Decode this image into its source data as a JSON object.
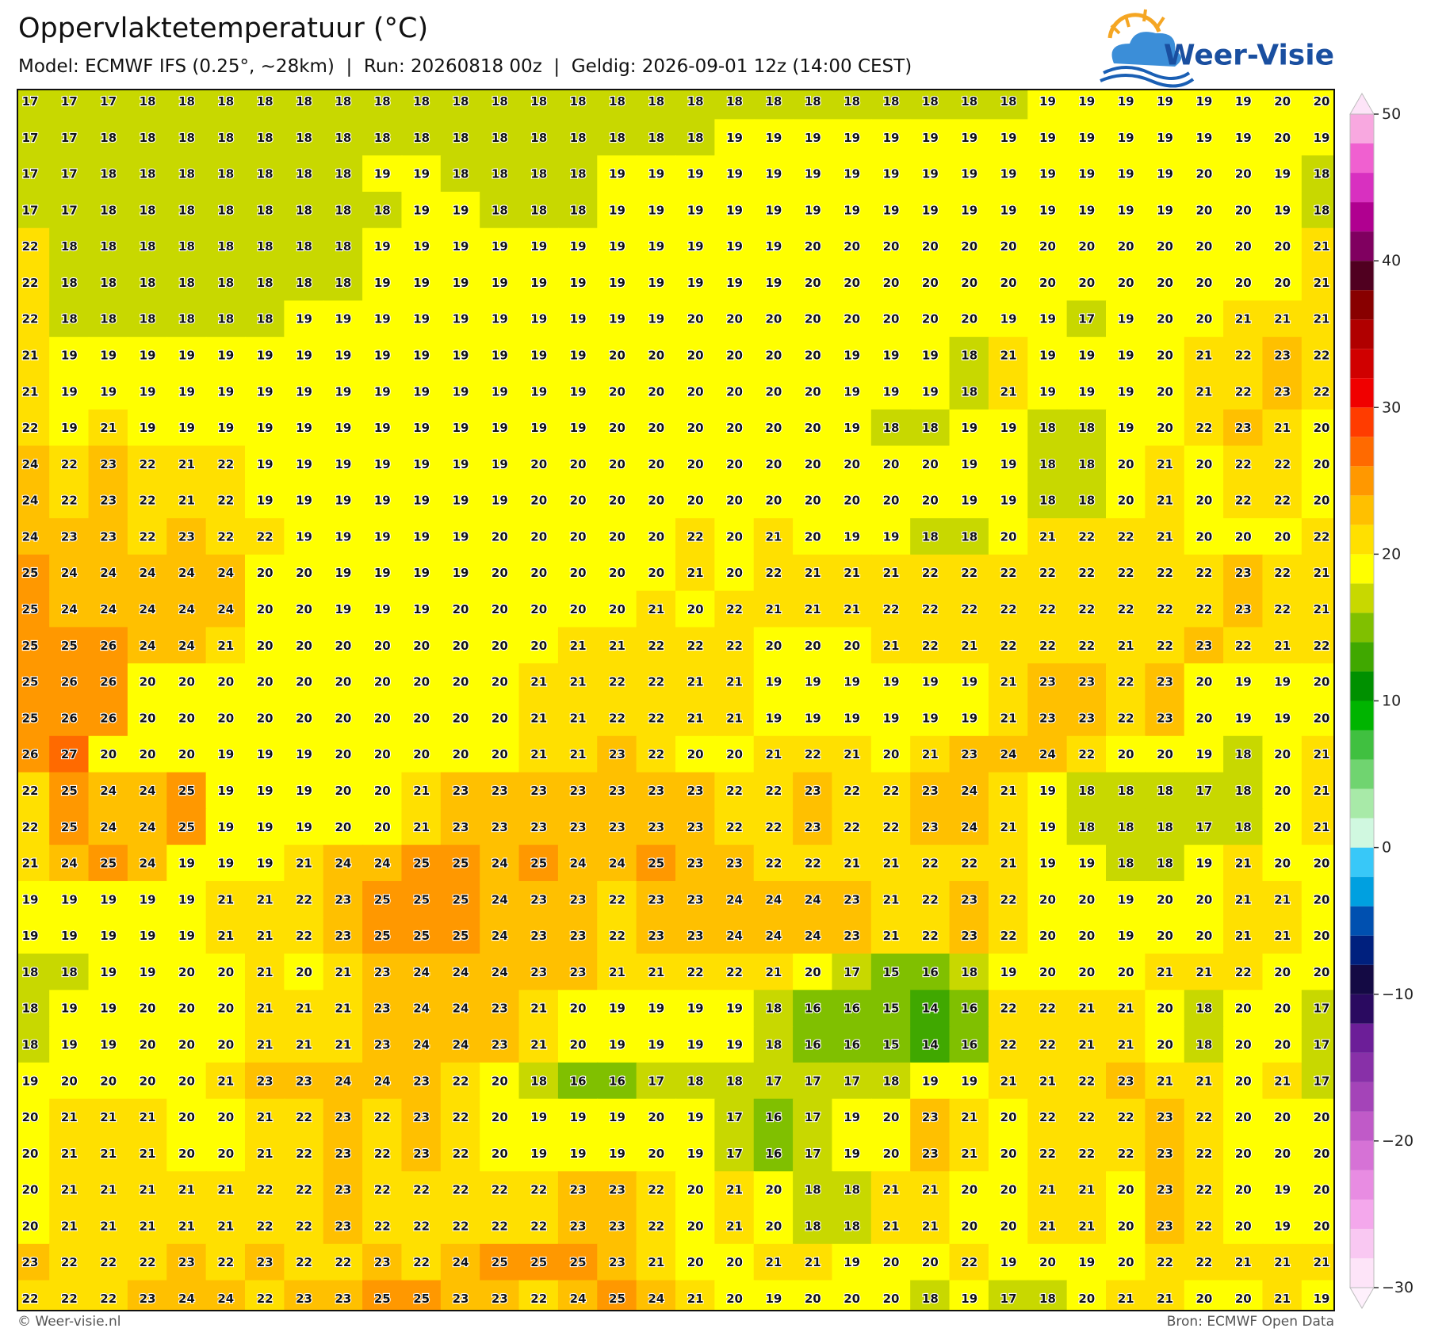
{
  "header": {
    "title": "Oppervlaktetemperatuur (°C)",
    "subtitle": "Model: ECMWF IFS (0.25°, ~28km)  |  Run: 20260818 00z  |  Geldig: 2026-09-01 12z (14:00 CEST)",
    "logo_text": "Weer-Visie"
  },
  "map": {
    "grid": [
      [
        17,
        17,
        17,
        18,
        18,
        18,
        18,
        18,
        18,
        18,
        18,
        18,
        18,
        18,
        18,
        18,
        18,
        18,
        18,
        18,
        18,
        18,
        18,
        18,
        18,
        18,
        19,
        19,
        19,
        19,
        19,
        19,
        20,
        20
      ],
      [
        17,
        17,
        18,
        18,
        18,
        18,
        18,
        18,
        18,
        18,
        18,
        18,
        18,
        18,
        18,
        18,
        18,
        18,
        19,
        19,
        19,
        19,
        19,
        19,
        19,
        19,
        19,
        19,
        19,
        19,
        19,
        19,
        20,
        19
      ],
      [
        17,
        17,
        18,
        18,
        18,
        18,
        18,
        18,
        18,
        19,
        19,
        18,
        18,
        18,
        18,
        19,
        19,
        19,
        19,
        19,
        19,
        19,
        19,
        19,
        19,
        19,
        19,
        19,
        19,
        19,
        20,
        20,
        19,
        18
      ],
      [
        17,
        17,
        18,
        18,
        18,
        18,
        18,
        18,
        18,
        18,
        19,
        19,
        18,
        18,
        18,
        19,
        19,
        19,
        19,
        19,
        19,
        19,
        19,
        19,
        19,
        19,
        19,
        19,
        19,
        19,
        20,
        20,
        19,
        18
      ],
      [
        22,
        18,
        18,
        18,
        18,
        18,
        18,
        18,
        18,
        19,
        19,
        19,
        19,
        19,
        19,
        19,
        19,
        19,
        19,
        19,
        20,
        20,
        20,
        20,
        20,
        20,
        20,
        20,
        20,
        20,
        20,
        20,
        20,
        21
      ],
      [
        22,
        18,
        18,
        18,
        18,
        18,
        18,
        18,
        18,
        19,
        19,
        19,
        19,
        19,
        19,
        19,
        19,
        19,
        19,
        19,
        20,
        20,
        20,
        20,
        20,
        20,
        20,
        20,
        20,
        20,
        20,
        20,
        20,
        21
      ],
      [
        22,
        18,
        18,
        18,
        18,
        18,
        18,
        19,
        19,
        19,
        19,
        19,
        19,
        19,
        19,
        19,
        19,
        20,
        20,
        20,
        20,
        20,
        20,
        20,
        20,
        19,
        19,
        17,
        19,
        20,
        20,
        21,
        21,
        21
      ],
      [
        21,
        19,
        19,
        19,
        19,
        19,
        19,
        19,
        19,
        19,
        19,
        19,
        19,
        19,
        19,
        20,
        20,
        20,
        20,
        20,
        20,
        19,
        19,
        19,
        18,
        21,
        19,
        19,
        19,
        20,
        21,
        22,
        23,
        22
      ],
      [
        21,
        19,
        19,
        19,
        19,
        19,
        19,
        19,
        19,
        19,
        19,
        19,
        19,
        19,
        19,
        20,
        20,
        20,
        20,
        20,
        20,
        19,
        19,
        19,
        18,
        21,
        19,
        19,
        19,
        20,
        21,
        22,
        23,
        22
      ],
      [
        22,
        19,
        21,
        19,
        19,
        19,
        19,
        19,
        19,
        19,
        19,
        19,
        19,
        19,
        19,
        20,
        20,
        20,
        20,
        20,
        20,
        19,
        18,
        18,
        19,
        19,
        18,
        18,
        19,
        20,
        22,
        23,
        21,
        20
      ],
      [
        24,
        22,
        23,
        22,
        21,
        22,
        19,
        19,
        19,
        19,
        19,
        19,
        19,
        20,
        20,
        20,
        20,
        20,
        20,
        20,
        20,
        20,
        20,
        20,
        19,
        19,
        18,
        18,
        20,
        21,
        20,
        22,
        22,
        20
      ],
      [
        24,
        22,
        23,
        22,
        21,
        22,
        19,
        19,
        19,
        19,
        19,
        19,
        19,
        20,
        20,
        20,
        20,
        20,
        20,
        20,
        20,
        20,
        20,
        20,
        19,
        19,
        18,
        18,
        20,
        21,
        20,
        22,
        22,
        20
      ],
      [
        24,
        23,
        23,
        22,
        23,
        22,
        22,
        19,
        19,
        19,
        19,
        19,
        20,
        20,
        20,
        20,
        20,
        22,
        20,
        21,
        20,
        19,
        19,
        18,
        18,
        20,
        21,
        22,
        22,
        21,
        20,
        20,
        20,
        22
      ],
      [
        25,
        24,
        24,
        24,
        24,
        24,
        20,
        20,
        19,
        19,
        19,
        19,
        20,
        20,
        20,
        20,
        20,
        21,
        20,
        22,
        21,
        21,
        21,
        22,
        22,
        22,
        22,
        22,
        22,
        22,
        22,
        23,
        22,
        21
      ],
      [
        25,
        24,
        24,
        24,
        24,
        24,
        20,
        20,
        19,
        19,
        19,
        20,
        20,
        20,
        20,
        20,
        21,
        20,
        22,
        21,
        21,
        21,
        22,
        22,
        22,
        22,
        22,
        22,
        22,
        22,
        22,
        23,
        22,
        21
      ],
      [
        25,
        25,
        26,
        24,
        24,
        21,
        20,
        20,
        20,
        20,
        20,
        20,
        20,
        20,
        21,
        21,
        22,
        22,
        22,
        20,
        20,
        20,
        21,
        22,
        21,
        22,
        22,
        22,
        21,
        22,
        23,
        22,
        21,
        22
      ],
      [
        25,
        26,
        26,
        20,
        20,
        20,
        20,
        20,
        20,
        20,
        20,
        20,
        20,
        21,
        21,
        22,
        22,
        21,
        21,
        19,
        19,
        19,
        19,
        19,
        19,
        21,
        23,
        23,
        22,
        23,
        20,
        19,
        19,
        20
      ],
      [
        25,
        26,
        26,
        20,
        20,
        20,
        20,
        20,
        20,
        20,
        20,
        20,
        20,
        21,
        21,
        22,
        22,
        21,
        21,
        19,
        19,
        19,
        19,
        19,
        19,
        21,
        23,
        23,
        22,
        23,
        20,
        19,
        19,
        20
      ],
      [
        26,
        27,
        20,
        20,
        20,
        19,
        19,
        19,
        20,
        20,
        20,
        20,
        20,
        21,
        21,
        23,
        22,
        20,
        20,
        21,
        22,
        21,
        20,
        21,
        23,
        24,
        24,
        22,
        20,
        20,
        19,
        18,
        20,
        21
      ],
      [
        22,
        25,
        24,
        24,
        25,
        19,
        19,
        19,
        20,
        20,
        21,
        23,
        23,
        23,
        23,
        23,
        23,
        23,
        22,
        22,
        23,
        22,
        22,
        23,
        24,
        21,
        19,
        18,
        18,
        18,
        17,
        18,
        20,
        21
      ],
      [
        22,
        25,
        24,
        24,
        25,
        19,
        19,
        19,
        20,
        20,
        21,
        23,
        23,
        23,
        23,
        23,
        23,
        23,
        22,
        22,
        23,
        22,
        22,
        23,
        24,
        21,
        19,
        18,
        18,
        18,
        17,
        18,
        20,
        21
      ],
      [
        21,
        24,
        25,
        24,
        19,
        19,
        19,
        21,
        24,
        24,
        25,
        25,
        24,
        25,
        24,
        24,
        25,
        23,
        23,
        22,
        22,
        21,
        21,
        22,
        22,
        21,
        19,
        19,
        18,
        18,
        19,
        21,
        20,
        20
      ],
      [
        19,
        19,
        19,
        19,
        19,
        21,
        21,
        22,
        23,
        25,
        25,
        25,
        24,
        23,
        23,
        22,
        23,
        23,
        24,
        24,
        24,
        23,
        21,
        22,
        23,
        22,
        20,
        20,
        19,
        20,
        20,
        21,
        21,
        20
      ],
      [
        19,
        19,
        19,
        19,
        19,
        21,
        21,
        22,
        23,
        25,
        25,
        25,
        24,
        23,
        23,
        22,
        23,
        23,
        24,
        24,
        24,
        23,
        21,
        22,
        23,
        22,
        20,
        20,
        19,
        20,
        20,
        21,
        21,
        20
      ],
      [
        18,
        18,
        19,
        19,
        20,
        20,
        21,
        20,
        21,
        23,
        24,
        24,
        24,
        23,
        23,
        21,
        21,
        22,
        22,
        21,
        20,
        17,
        15,
        16,
        18,
        19,
        20,
        20,
        20,
        21,
        21,
        22,
        20,
        20
      ],
      [
        18,
        19,
        19,
        20,
        20,
        20,
        21,
        21,
        21,
        23,
        24,
        24,
        23,
        21,
        20,
        19,
        19,
        19,
        19,
        18,
        16,
        16,
        15,
        14,
        16,
        22,
        22,
        21,
        21,
        20,
        18,
        20,
        20,
        17
      ],
      [
        18,
        19,
        19,
        20,
        20,
        20,
        21,
        21,
        21,
        23,
        24,
        24,
        23,
        21,
        20,
        19,
        19,
        19,
        19,
        18,
        16,
        16,
        15,
        14,
        16,
        22,
        22,
        21,
        21,
        20,
        18,
        20,
        20,
        17
      ],
      [
        19,
        20,
        20,
        20,
        20,
        21,
        23,
        23,
        24,
        24,
        23,
        22,
        20,
        18,
        16,
        16,
        17,
        18,
        18,
        17,
        17,
        17,
        18,
        19,
        19,
        21,
        21,
        22,
        23,
        21,
        21,
        20,
        21,
        17
      ],
      [
        20,
        21,
        21,
        21,
        20,
        20,
        21,
        22,
        23,
        22,
        23,
        22,
        20,
        19,
        19,
        19,
        20,
        19,
        17,
        16,
        17,
        19,
        20,
        23,
        21,
        20,
        22,
        22,
        22,
        23,
        22,
        20,
        20,
        20
      ],
      [
        20,
        21,
        21,
        21,
        20,
        20,
        21,
        22,
        23,
        22,
        23,
        22,
        20,
        19,
        19,
        19,
        20,
        19,
        17,
        16,
        17,
        19,
        20,
        23,
        21,
        20,
        22,
        22,
        22,
        23,
        22,
        20,
        20,
        20
      ],
      [
        20,
        21,
        21,
        21,
        21,
        21,
        22,
        22,
        23,
        22,
        22,
        22,
        22,
        22,
        23,
        23,
        22,
        20,
        21,
        20,
        18,
        18,
        21,
        21,
        20,
        20,
        21,
        21,
        20,
        23,
        22,
        20,
        19,
        20
      ],
      [
        20,
        21,
        21,
        21,
        21,
        21,
        22,
        22,
        23,
        22,
        22,
        22,
        22,
        22,
        23,
        23,
        22,
        20,
        21,
        20,
        18,
        18,
        21,
        21,
        20,
        20,
        21,
        21,
        20,
        23,
        22,
        20,
        19,
        20
      ],
      [
        23,
        22,
        22,
        22,
        23,
        22,
        23,
        22,
        22,
        23,
        22,
        24,
        25,
        25,
        25,
        23,
        21,
        20,
        20,
        21,
        21,
        19,
        20,
        20,
        22,
        19,
        20,
        19,
        20,
        22,
        22,
        21,
        21,
        21
      ],
      [
        22,
        22,
        22,
        23,
        24,
        24,
        22,
        23,
        23,
        25,
        25,
        23,
        23,
        22,
        24,
        25,
        24,
        21,
        20,
        19,
        20,
        20,
        20,
        18,
        19,
        17,
        18,
        20,
        21,
        21,
        20,
        20,
        21,
        19
      ]
    ]
  },
  "colorbar": {
    "lim": [
      -30,
      50
    ],
    "ticks": [
      {
        "value": -30,
        "label": "−30"
      },
      {
        "value": -20,
        "label": "−20"
      },
      {
        "value": -10,
        "label": "−10"
      },
      0,
      10,
      20,
      30,
      40,
      50
    ],
    "colors": [
      "#fde4f8",
      "#f9c8f2",
      "#f4a8ec",
      "#e88ce2",
      "#d672d6",
      "#c05ac8",
      "#a444b8",
      "#8830a8",
      "#6c1e98",
      "#2a0a60",
      "#140a44",
      "#00207e",
      "#0050b0",
      "#00a0e0",
      "#38c8f8",
      "#d0f8e0",
      "#a8eaa8",
      "#70d470",
      "#40c040",
      "#00b400",
      "#009000",
      "#40a800",
      "#80c000",
      "#c8d800",
      "#ffff00",
      "#ffe000",
      "#ffc000",
      "#ff9800",
      "#ff6a00",
      "#ff3c00",
      "#f00000",
      "#d00000",
      "#b00000",
      "#880000",
      "#500020",
      "#800060",
      "#b00090",
      "#d830c0",
      "#f060d0",
      "#f8a8e0"
    ]
  },
  "footer": {
    "left": "© Weer-visie.nl",
    "right": "Bron: ECMWF Open Data"
  }
}
